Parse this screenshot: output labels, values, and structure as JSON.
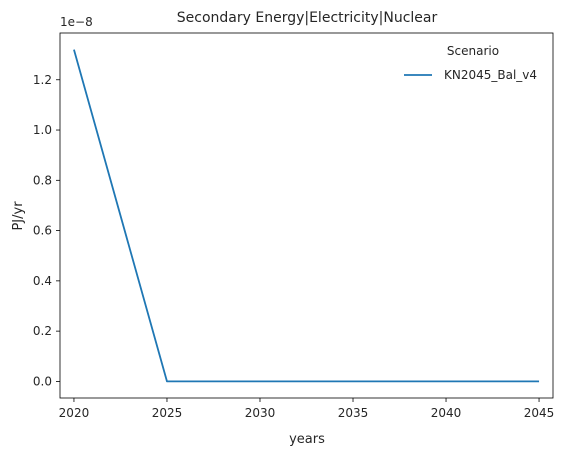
{
  "chart_data": {
    "type": "line",
    "title": "Secondary Energy|Electricity|Nuclear",
    "xlabel": "years",
    "ylabel": "PJ/yr",
    "y_offset_text": "1e−8",
    "y_scale_exponent": -8,
    "x": [
      2020,
      2025,
      2030,
      2035,
      2040,
      2045
    ],
    "series": [
      {
        "name": "KN2045_Bal_v4",
        "values": [
          1.32e-08,
          0,
          0,
          0,
          0,
          0
        ],
        "color": "#1f77b4"
      }
    ],
    "xlim": [
      2019.25,
      2045.75
    ],
    "ylim": [
      -6.6e-10,
      1.386e-08
    ],
    "x_ticks": [
      2020,
      2025,
      2030,
      2035,
      2040,
      2045
    ],
    "y_ticks": [
      0.0,
      0.2,
      0.4,
      0.6,
      0.8,
      1.0,
      1.2
    ],
    "grid": false,
    "legend": {
      "title": "Scenario",
      "placement": "top-right"
    }
  }
}
